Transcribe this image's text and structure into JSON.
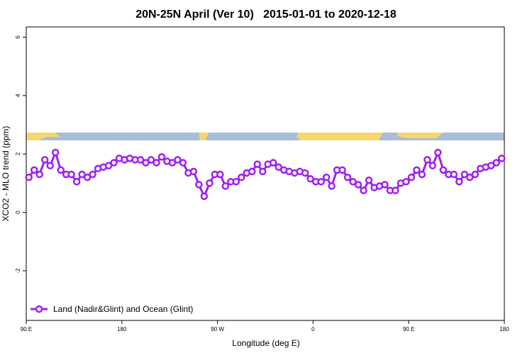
{
  "chart_data": {
    "type": "line",
    "title": "20N-25N April (Ver 10)   2015-01-01 to 2020-12-18",
    "x_label": "Longitude (deg E)",
    "y_label": "XCO2 - MLO trend (ppm)",
    "x": [
      92.5,
      97.5,
      102.5,
      107.5,
      112.5,
      117.5,
      122.5,
      127.5,
      132.5,
      137.5,
      142.5,
      147.5,
      152.5,
      157.5,
      162.5,
      167.5,
      172.5,
      177.5,
      182.5,
      187.5,
      192.5,
      197.5,
      202.5,
      207.5,
      212.5,
      217.5,
      222.5,
      227.5,
      232.5,
      237.5,
      242.5,
      247.5,
      252.5,
      257.5,
      262.5,
      267.5,
      272.5,
      277.5,
      282.5,
      287.5,
      292.5,
      297.5,
      302.5,
      307.5,
      312.5,
      317.5,
      322.5,
      327.5,
      332.5,
      337.5,
      342.5,
      347.5,
      352.5,
      357.5,
      362.5,
      367.5,
      372.5,
      377.5,
      382.5,
      387.5,
      392.5,
      397.5,
      402.5,
      407.5,
      412.5,
      417.5,
      422.5,
      427.5,
      432.5,
      437.5,
      442.5,
      447.5,
      452.5,
      457.5,
      462.5,
      467.5,
      472.5,
      477.5,
      482.5,
      487.5,
      492.5,
      497.5,
      502.5,
      507.5,
      512.5,
      517.5,
      522.5,
      527.5,
      532.5,
      537.5
    ],
    "series": [
      {
        "name": "Land (Nadir&Glint) and Ocean (Glint)",
        "color": "#a020f0",
        "values": [
          1.2,
          1.45,
          1.3,
          1.8,
          1.6,
          2.05,
          1.45,
          1.3,
          1.3,
          1.05,
          1.3,
          1.2,
          1.3,
          1.5,
          1.55,
          1.6,
          1.7,
          1.85,
          1.8,
          1.85,
          1.8,
          1.8,
          1.7,
          1.8,
          1.7,
          1.9,
          1.75,
          1.7,
          1.8,
          1.7,
          1.35,
          1.4,
          0.95,
          0.55,
          1.0,
          1.3,
          1.3,
          0.9,
          1.05,
          1.05,
          1.2,
          1.35,
          1.4,
          1.65,
          1.4,
          1.65,
          1.7,
          1.55,
          1.45,
          1.4,
          1.35,
          1.4,
          1.35,
          1.15,
          1.05,
          1.05,
          1.2,
          0.9,
          1.45,
          1.45,
          1.2,
          1.05,
          0.95,
          0.75,
          1.1,
          0.85,
          0.9,
          0.95,
          0.75,
          0.75,
          1.0,
          1.05,
          1.2,
          1.45,
          1.3,
          1.8,
          1.6,
          2.05,
          1.45,
          1.3,
          1.3,
          1.05,
          1.3,
          1.2,
          1.3,
          1.5,
          1.55,
          1.6,
          1.7,
          1.85
        ]
      }
    ],
    "xlim": [
      90,
      540
    ],
    "xticks": [
      {
        "value": 90,
        "label": "90 E"
      },
      180,
      {
        "value": 270,
        "label": "90 W"
      },
      {
        "value": 360,
        "label": "0"
      },
      {
        "value": 450,
        "label": "90 E"
      },
      {
        "value": 540,
        "label": "180"
      }
    ],
    "ylim": [
      -3.7,
      6.35
    ],
    "yticks": [
      -2,
      0,
      2,
      4,
      6
    ],
    "legend": "bottom-left"
  }
}
